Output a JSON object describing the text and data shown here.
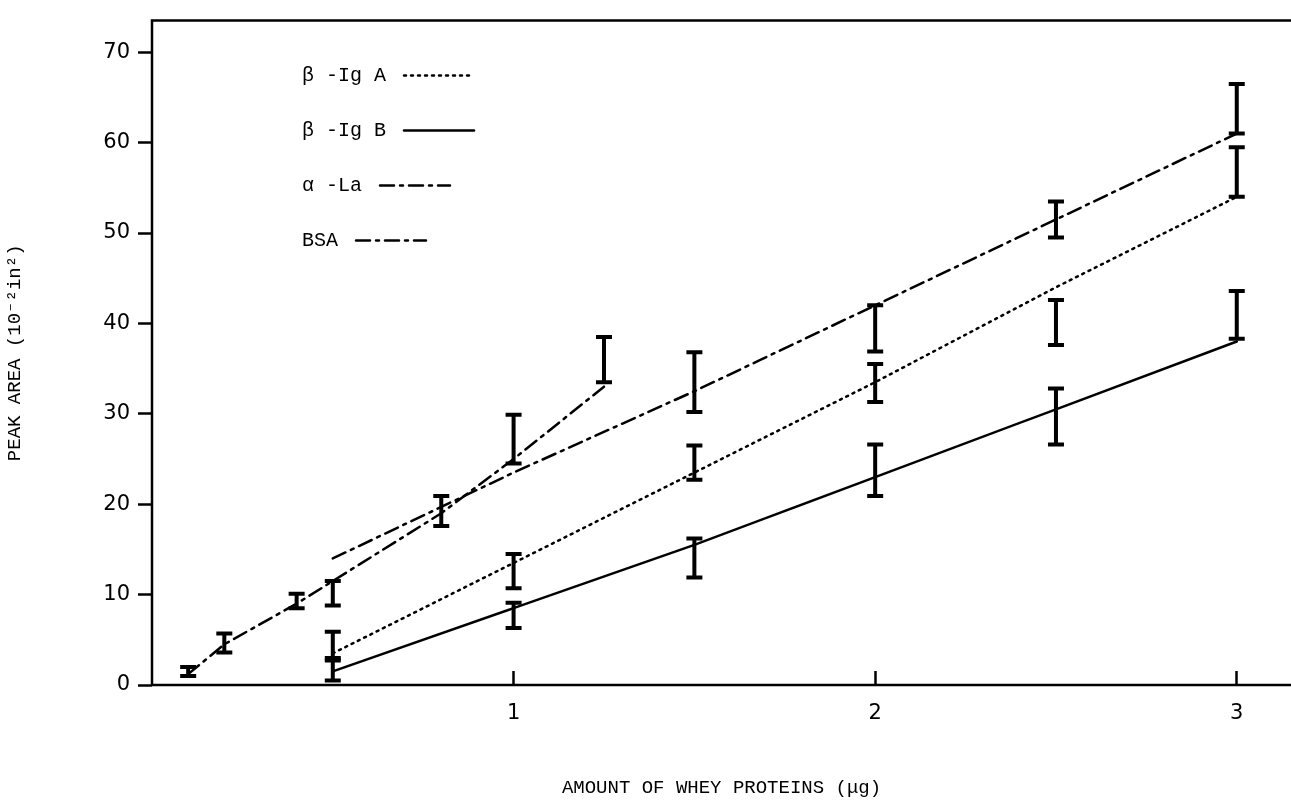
{
  "chart_data": {
    "type": "line",
    "xlabel": "AMOUNT OF WHEY PROTEINS (μg)",
    "ylabel": "PEAK AREA (10⁻²in²)",
    "xlim": [
      0,
      3.15
    ],
    "xticks": [
      1,
      2,
      3
    ],
    "ylim": [
      0,
      73.5
    ],
    "yticks": [
      0,
      10,
      20,
      30,
      40,
      50,
      60,
      70
    ],
    "grid": false,
    "legend": "top left",
    "marker": "none",
    "series": [
      {
        "name": "β -Ig A",
        "color": "#000000",
        "line_style": "dotted",
        "x": [
          0.5,
          1,
          1.5,
          2,
          2.5,
          3
        ],
        "values": [
          3.5,
          13.5,
          23.5,
          33.5,
          44,
          54
        ],
        "errors": [
          [
            2.7,
            5.9
          ],
          [
            10.7,
            14.5
          ],
          [
            22.7,
            26.5
          ],
          [
            31.3,
            35.5
          ],
          [
            37.6,
            42.6
          ],
          [
            54,
            59.5
          ]
        ]
      },
      {
        "name": "β -Ig B",
        "color": "#000000",
        "line_style": "solid",
        "x": [
          0.5,
          1,
          1.5,
          2,
          2.5,
          3
        ],
        "values": [
          1.5,
          8.5,
          15.5,
          23,
          30.5,
          38
        ],
        "errors": [
          [
            0.5,
            3
          ],
          [
            6.3,
            9.1
          ],
          [
            11.9,
            16.2
          ],
          [
            20.9,
            26.6
          ],
          [
            26.6,
            32.8
          ],
          [
            38.3,
            43.6
          ]
        ]
      },
      {
        "name": "α -La",
        "color": "#000000",
        "line_style": "dashed",
        "x": [
          0.5,
          1,
          1.5,
          2,
          2.5,
          3
        ],
        "values": [
          14,
          23.5,
          32.5,
          42,
          51.5,
          61
        ],
        "errors": [
          null,
          null,
          [
            30.2,
            36.8
          ],
          [
            36.9,
            42
          ],
          [
            49.5,
            53.5
          ],
          [
            61,
            66.5
          ]
        ]
      },
      {
        "name": "BSA",
        "color": "#000000",
        "line_style": "dashed",
        "x": [
          0.1,
          0.2,
          0.4,
          0.5,
          0.8,
          1,
          1.25
        ],
        "values": [
          1.2,
          4.5,
          9,
          11.5,
          19,
          25,
          33
        ],
        "errors": [
          [
            1,
            2
          ],
          [
            3.6,
            5.7
          ],
          [
            8.5,
            10.1
          ],
          [
            8.8,
            11.5
          ],
          [
            17.6,
            20.9
          ],
          [
            24.5,
            29.9
          ],
          [
            33.5,
            38.5
          ]
        ]
      }
    ]
  }
}
